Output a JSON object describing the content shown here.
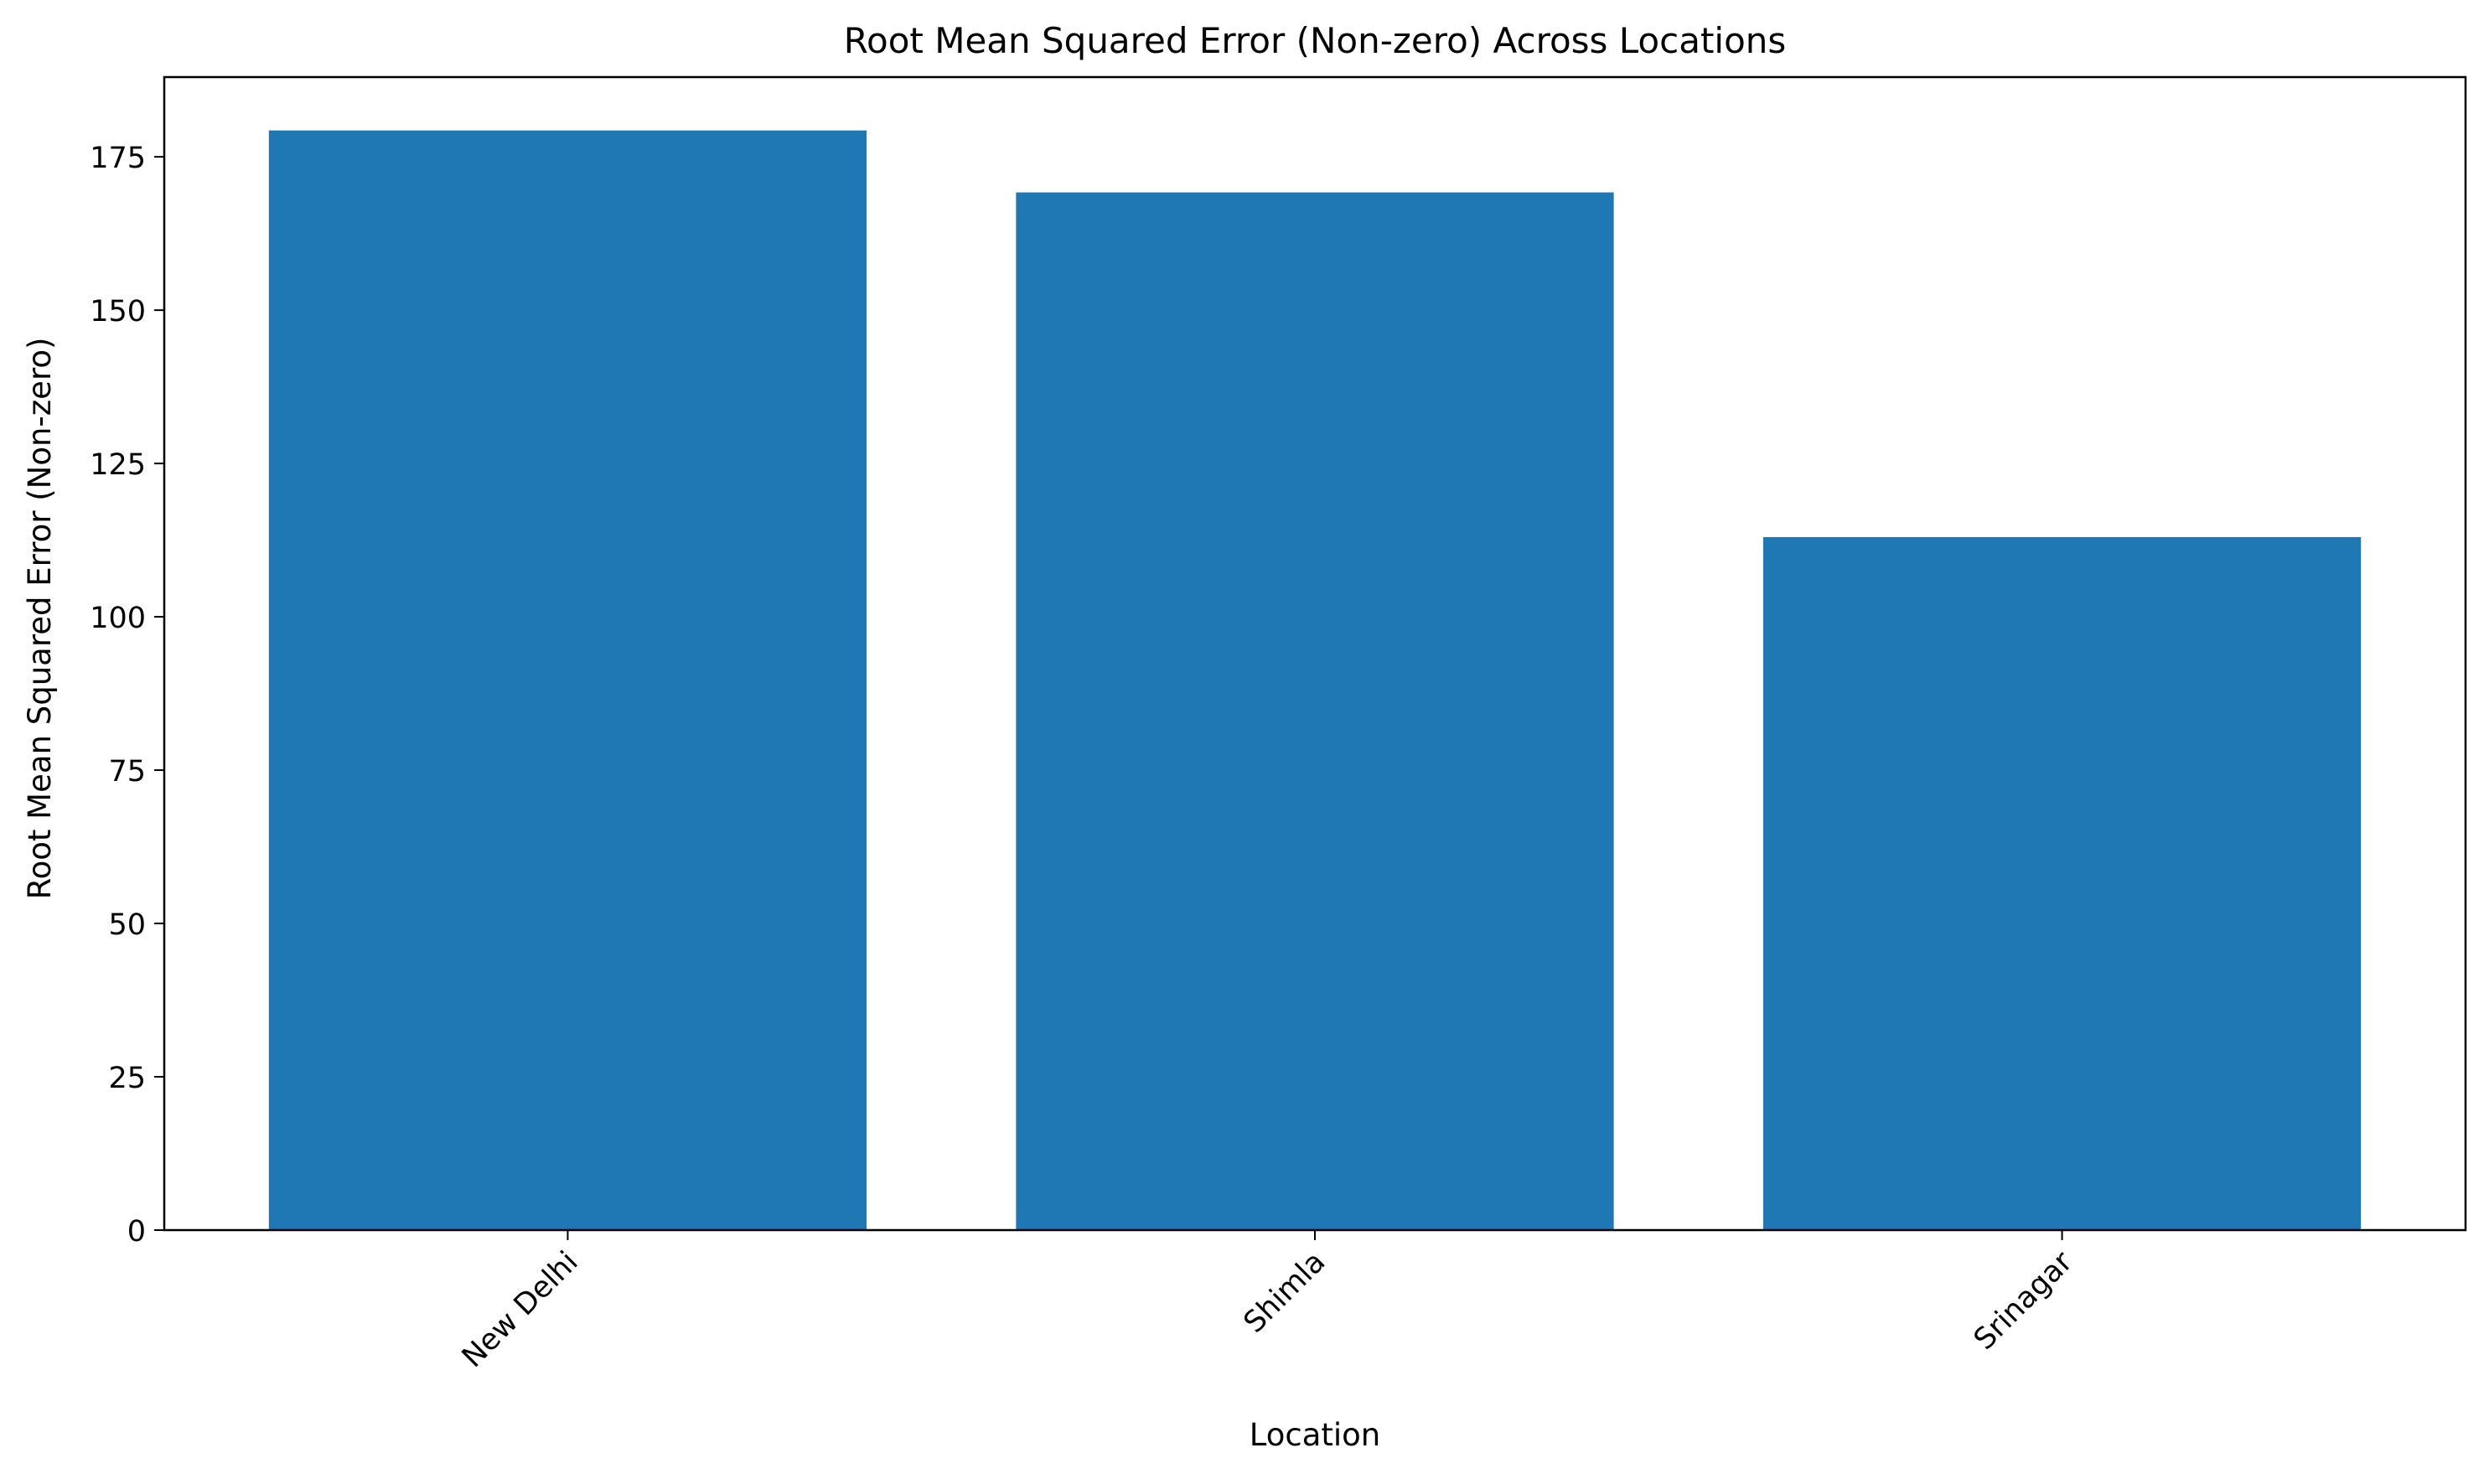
{
  "chart_data": {
    "type": "bar",
    "title": "Root Mean Squared Error (Non-zero) Across Locations",
    "xlabel": "Location",
    "ylabel": "Root Mean Squared Error (Non-zero)",
    "categories": [
      "New Delhi",
      "Shimla",
      "Srinagar"
    ],
    "values": [
      179.3,
      169.2,
      113.0
    ],
    "ylim": [
      0,
      188
    ],
    "yticks": [
      0,
      25,
      50,
      75,
      100,
      125,
      150,
      175
    ],
    "xtick_rotation_deg": 45,
    "grid": false,
    "legend": "none",
    "bar_color": "#1f77b4"
  }
}
